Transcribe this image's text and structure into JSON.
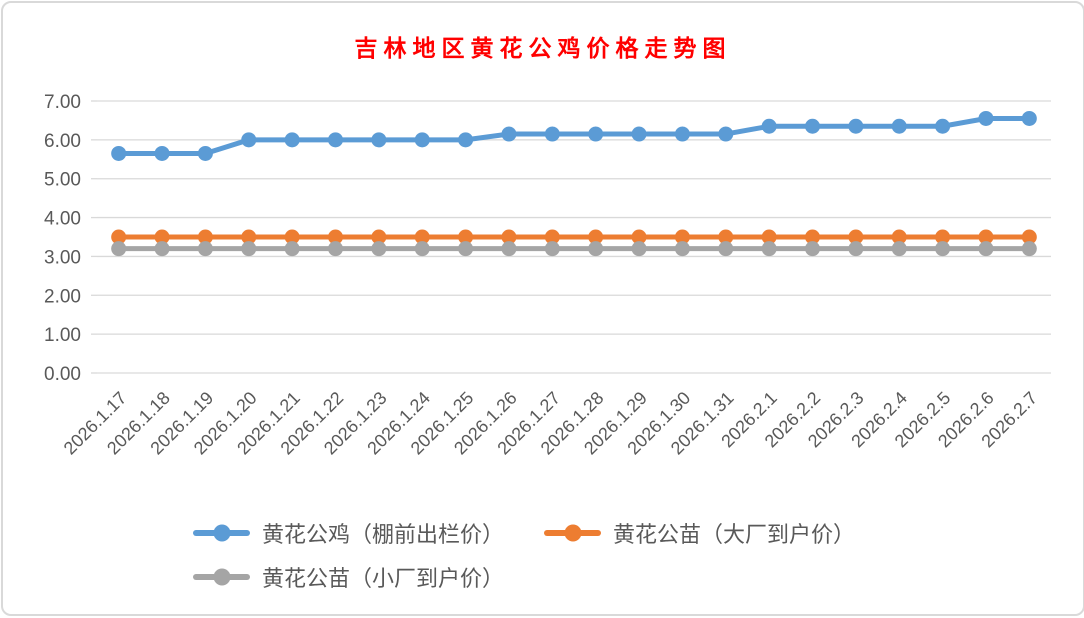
{
  "chart_data": {
    "type": "line",
    "title": "吉林地区黄花公鸡价格走势图",
    "title_color": "#FF0000",
    "categories": [
      "2026.1.17",
      "2026.1.18",
      "2026.1.19",
      "2026.1.20",
      "2026.1.21",
      "2026.1.22",
      "2026.1.23",
      "2026.1.24",
      "2026.1.25",
      "2026.1.26",
      "2026.1.27",
      "2026.1.28",
      "2026.1.29",
      "2026.1.30",
      "2026.1.31",
      "2026.2.1",
      "2026.2.2",
      "2026.2.3",
      "2026.2.4",
      "2026.2.5",
      "2026.2.6",
      "2026.2.7"
    ],
    "series": [
      {
        "name": "黄花公鸡（棚前出栏价）",
        "color": "#5B9BD5",
        "values": [
          5.65,
          5.65,
          5.65,
          6.0,
          6.0,
          6.0,
          6.0,
          6.0,
          6.0,
          6.15,
          6.15,
          6.15,
          6.15,
          6.15,
          6.15,
          6.35,
          6.35,
          6.35,
          6.35,
          6.35,
          6.55,
          6.55
        ]
      },
      {
        "name": "黄花公苗（大厂到户价）",
        "color": "#ED7D31",
        "values": [
          3.5,
          3.5,
          3.5,
          3.5,
          3.5,
          3.5,
          3.5,
          3.5,
          3.5,
          3.5,
          3.5,
          3.5,
          3.5,
          3.5,
          3.5,
          3.5,
          3.5,
          3.5,
          3.5,
          3.5,
          3.5,
          3.5
        ]
      },
      {
        "name": "黄花公苗（小厂到户价）",
        "color": "#A5A5A5",
        "values": [
          3.2,
          3.2,
          3.2,
          3.2,
          3.2,
          3.2,
          3.2,
          3.2,
          3.2,
          3.2,
          3.2,
          3.2,
          3.2,
          3.2,
          3.2,
          3.2,
          3.2,
          3.2,
          3.2,
          3.2,
          3.2,
          3.2
        ]
      }
    ],
    "xlabel": "",
    "ylabel": "",
    "ylim": [
      0,
      7
    ],
    "ytick_step": 1,
    "ytick_decimals": 2,
    "grid": true,
    "gridline_color": "#D9D9D9",
    "axis_label_color": "#595959",
    "legend_position": "bottom",
    "marker": "circle"
  },
  "frame": {
    "border_color": "#D9D9D9",
    "background": "#FFFFFF"
  }
}
